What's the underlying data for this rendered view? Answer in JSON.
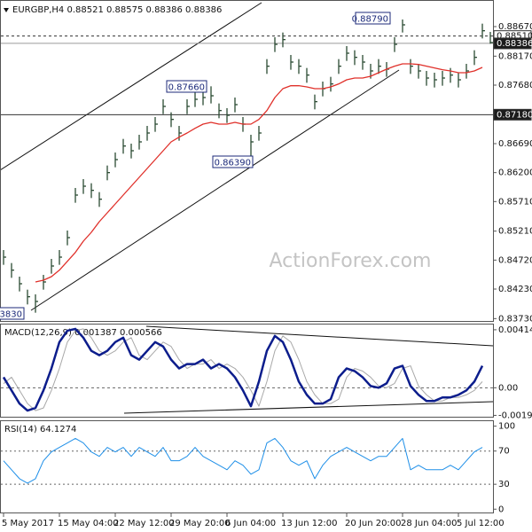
{
  "chart_data": [
    {
      "type": "ohlc",
      "title": "EURGBP,H4  0.88521 0.88575 0.88386 0.88386",
      "watermark": "ActionForex.com",
      "categories": [
        "5 May 2017",
        null,
        null,
        null,
        null,
        null,
        null,
        "15 May 04:00",
        null,
        null,
        null,
        null,
        null,
        null,
        "22 May 12:00",
        null,
        null,
        null,
        null,
        null,
        null,
        "29 May 20:00",
        null,
        null,
        null,
        null,
        null,
        null,
        "6 Jun 04:00",
        null,
        null,
        null,
        null,
        null,
        null,
        "13 Jun 12:00",
        null,
        null,
        null,
        null,
        null,
        null,
        null,
        "20 Jun 20:00",
        null,
        null,
        null,
        null,
        null,
        null,
        "28 Jun 04:00",
        null,
        null,
        null,
        null,
        null,
        null,
        "5 Jul 12:00",
        null,
        null,
        null,
        null
      ],
      "color": "#2b4a33",
      "high": [
        0.8489,
        0.8467,
        0.8444,
        0.8422,
        0.8414,
        0.8447,
        0.8474,
        0.8489,
        0.8522,
        0.8594,
        0.8609,
        0.8602,
        0.8587,
        0.8632,
        0.8654,
        0.8677,
        0.8669,
        0.8684,
        0.8699,
        0.8714,
        0.8744,
        0.8722,
        0.8699,
        0.8744,
        0.8756,
        0.8759,
        0.8766,
        0.8737,
        0.8729,
        0.8747,
        0.8714,
        0.8684,
        0.8699,
        0.8812,
        0.8849,
        0.8857,
        0.8819,
        0.8812,
        0.8797,
        0.8752,
        0.8774,
        0.8782,
        0.8812,
        0.8834,
        0.8827,
        0.8819,
        0.8804,
        0.8812,
        0.8807,
        0.8849,
        0.8879,
        0.8812,
        0.8804,
        0.8792,
        0.8789,
        0.8792,
        0.8797,
        0.8789,
        0.8804,
        0.8827,
        0.8872,
        0.8858
      ],
      "low": [
        0.8464,
        0.8442,
        0.8419,
        0.8397,
        0.8383,
        0.8422,
        0.8449,
        0.8464,
        0.8497,
        0.8569,
        0.8584,
        0.8577,
        0.8562,
        0.8607,
        0.8629,
        0.8652,
        0.8644,
        0.8659,
        0.8674,
        0.8689,
        0.8719,
        0.8697,
        0.8674,
        0.8719,
        0.8731,
        0.8734,
        0.8737,
        0.8712,
        0.8704,
        0.8722,
        0.8689,
        0.8639,
        0.8674,
        0.8787,
        0.8824,
        0.8832,
        0.8794,
        0.8787,
        0.8772,
        0.8727,
        0.8749,
        0.8757,
        0.8787,
        0.8809,
        0.8802,
        0.8794,
        0.8779,
        0.8787,
        0.8782,
        0.8824,
        0.8857,
        0.8787,
        0.8779,
        0.8767,
        0.8764,
        0.8767,
        0.8772,
        0.8764,
        0.8779,
        0.8802,
        0.8847,
        0.8838
      ],
      "close": [
        0.8477,
        0.8455,
        0.8432,
        0.841,
        0.8402,
        0.8435,
        0.8462,
        0.8477,
        0.851,
        0.8582,
        0.8597,
        0.859,
        0.8575,
        0.862,
        0.8642,
        0.8665,
        0.8657,
        0.8672,
        0.8687,
        0.8702,
        0.8732,
        0.871,
        0.8687,
        0.8732,
        0.8744,
        0.8747,
        0.875,
        0.8725,
        0.8717,
        0.8735,
        0.8702,
        0.8672,
        0.8687,
        0.88,
        0.8837,
        0.8845,
        0.8807,
        0.88,
        0.8785,
        0.874,
        0.8762,
        0.877,
        0.88,
        0.8822,
        0.8815,
        0.8807,
        0.8792,
        0.88,
        0.8795,
        0.8837,
        0.887,
        0.88,
        0.8792,
        0.878,
        0.8777,
        0.878,
        0.8785,
        0.8777,
        0.8792,
        0.8815,
        0.886,
        0.884
      ],
      "ma": {
        "color": "#e0302a",
        "values": [
          null,
          null,
          null,
          null,
          0.8435,
          0.8438,
          0.8444,
          0.8455,
          0.847,
          0.8485,
          0.8504,
          0.8519,
          0.8537,
          0.8552,
          0.8567,
          0.8582,
          0.8597,
          0.8612,
          0.8627,
          0.8642,
          0.8657,
          0.8672,
          0.868,
          0.8687,
          0.8695,
          0.8702,
          0.8705,
          0.8702,
          0.8702,
          0.8705,
          0.8702,
          0.8702,
          0.871,
          0.8725,
          0.8747,
          0.8762,
          0.8767,
          0.8767,
          0.8765,
          0.8762,
          0.8762,
          0.8765,
          0.877,
          0.8777,
          0.878,
          0.878,
          0.8783,
          0.8789,
          0.8795,
          0.88,
          0.8804,
          0.8804,
          0.8803,
          0.88,
          0.8797,
          0.8794,
          0.8792,
          0.8789,
          0.8789,
          0.8792,
          0.8798,
          null
        ]
      },
      "ylim": [
        0.8369,
        0.8912
      ],
      "yticks": [
        {
          "value": 0.8867,
          "label": "0.88670"
        },
        {
          "value": 0.8817,
          "label": "0.88170"
        },
        {
          "value": 0.8768,
          "label": "0.87680"
        },
        {
          "value": 0.8669,
          "label": "0.86690"
        },
        {
          "value": 0.862,
          "label": "0.86200"
        },
        {
          "value": 0.8571,
          "label": "0.85710"
        },
        {
          "value": 0.8521,
          "label": "0.85210"
        },
        {
          "value": 0.8472,
          "label": "0.84720"
        },
        {
          "value": 0.8423,
          "label": "0.84230"
        },
        {
          "value": 0.8373,
          "label": "0.83730"
        }
      ],
      "levels": [
        {
          "value": 0.8851,
          "label": "0.88510",
          "style": "dashed"
        },
        {
          "value": 0.88386,
          "label": "0.88386",
          "style": "current"
        },
        {
          "value": 0.8718,
          "label": "0.87180",
          "style": "solid"
        }
      ],
      "annotations": [
        "0.88790",
        "0.87660",
        "0.86390",
        "0.83830"
      ]
    },
    {
      "type": "line",
      "title": "MACD(12,26,9) 0.001387 0.000566",
      "series": [
        {
          "color": "#0c1d8c",
          "width": 2.5,
          "values": [
            0.000754,
            -0.000188,
            -0.00113,
            -0.001633,
            -0.001444,
            -0.000188,
            0.001382,
            0.003266,
            0.004082,
            0.004208,
            0.00358,
            0.002638,
            0.002324,
            0.002638,
            0.003266,
            0.00358,
            0.002324,
            0.00201,
            0.002638,
            0.003266,
            0.002952,
            0.00201,
            0.001382,
            0.001696,
            0.001696,
            0.00201,
            0.001382,
            0.001696,
            0.001382,
            0.000754,
            -0.000188,
            -0.001319,
            0.00044,
            0.002638,
            0.003705,
            0.003266,
            0.00201,
            0.00044,
            -0.000502,
            -0.00113,
            -0.00113,
            -0.000816,
            0.000754,
            0.001382,
            0.001193,
            0.000754,
            0.000126,
            0,
            0.000314,
            0.001382,
            0.00157,
            0.000126,
            -0.000502,
            -0.000942,
            -0.000942,
            -0.000691,
            -0.000691,
            -0.000502,
            -0.000188,
            0.00044,
            0.00157,
            null
          ]
        },
        {
          "color": "#a8a8a8",
          "width": 1,
          "values": [
            0.0003,
            0.000754,
            -0.000188,
            -0.00113,
            -0.001633,
            -0.001444,
            -0.000188,
            0.001382,
            0.003266,
            0.004082,
            0.004208,
            0.00358,
            0.002638,
            0.002324,
            0.002638,
            0.003266,
            0.00358,
            0.002324,
            0.00201,
            0.002638,
            0.003266,
            0.002952,
            0.00201,
            0.001382,
            0.001696,
            0.001696,
            0.00201,
            0.001382,
            0.001696,
            0.001382,
            0.000754,
            -0.000188,
            -0.001319,
            0.00044,
            0.002638,
            0.003705,
            0.003266,
            0.00201,
            0.00044,
            -0.000502,
            -0.00113,
            -0.00113,
            -0.000816,
            0.000754,
            0.001382,
            0.001193,
            0.000754,
            0.000126,
            0,
            0.000314,
            0.001382,
            0.00157,
            0.000126,
            -0.000502,
            -0.000942,
            -0.000942,
            -0.000691,
            -0.000691,
            -0.000502,
            -0.000188,
            0.00044,
            null
          ]
        }
      ],
      "ylim": [
        -0.00207,
        0.00452
      ],
      "yticks": [
        0.004145,
        {
          "value": 0,
          "label": "0.00"
        },
        -0.001972
      ],
      "zero_line": true
    },
    {
      "type": "line",
      "title": "RSI(14) 64.1274",
      "series": [
        {
          "color": "#1e8fe8",
          "width": 1,
          "values": [
            58.3,
            47.5,
            36.7,
            31.3,
            36.7,
            58.3,
            69.0,
            74.4,
            79.8,
            85.2,
            79.8,
            69.0,
            63.6,
            74.4,
            69.0,
            74.4,
            63.6,
            74.4,
            69.0,
            63.6,
            74.4,
            58.3,
            58.3,
            63.6,
            74.4,
            63.6,
            58.3,
            52.9,
            47.5,
            58.3,
            52.9,
            42.1,
            47.5,
            79.8,
            85.2,
            74.4,
            58.3,
            52.9,
            58.3,
            36.7,
            52.9,
            63.6,
            69.0,
            74.4,
            69.0,
            63.6,
            58.3,
            63.6,
            63.6,
            74.4,
            85.2,
            47.5,
            52.9,
            47.5,
            47.5,
            47.5,
            52.9,
            47.5,
            58.3,
            69.0,
            74.4,
            null
          ]
        }
      ],
      "ylim": [
        -4,
        106
      ],
      "yticks": [
        100,
        70,
        30,
        0
      ],
      "levels": [
        70,
        30
      ]
    }
  ]
}
